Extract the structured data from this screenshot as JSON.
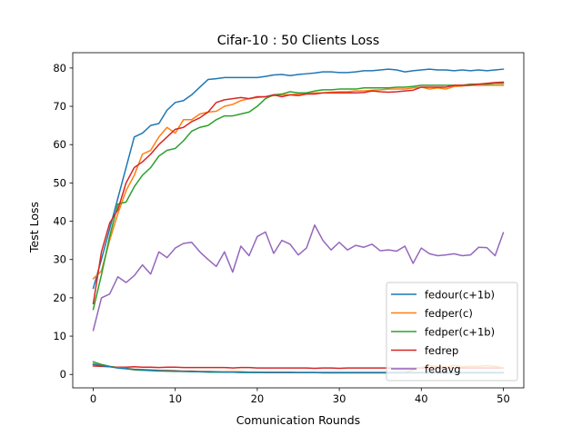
{
  "chart_data": {
    "type": "line",
    "title": "Cifar-10 : 50 Clients Loss",
    "xlabel": "Comunication Rounds",
    "ylabel": "Test Loss",
    "xlim": [
      -2.5,
      52.5
    ],
    "ylim": [
      -3.5,
      84
    ],
    "xticks": [
      0,
      10,
      20,
      30,
      40,
      50
    ],
    "yticks": [
      0,
      10,
      20,
      30,
      40,
      50,
      60,
      70,
      80
    ],
    "grid": false,
    "legend_position": "lower-right",
    "x": [
      0,
      1,
      2,
      3,
      4,
      5,
      6,
      7,
      8,
      9,
      10,
      11,
      12,
      13,
      14,
      15,
      16,
      17,
      18,
      19,
      20,
      21,
      22,
      23,
      24,
      25,
      26,
      27,
      28,
      29,
      30,
      31,
      32,
      33,
      34,
      35,
      36,
      37,
      38,
      39,
      40,
      41,
      42,
      43,
      44,
      45,
      46,
      47,
      48,
      49,
      50
    ],
    "series": [
      {
        "name": "fedour(c+1b)",
        "color": "#1f77b4",
        "values": [
          22.5,
          30,
          38,
          46,
          54,
          62,
          63,
          65,
          65.5,
          69,
          71,
          71.5,
          73,
          75,
          77,
          77.2,
          77.5,
          77.5,
          77.5,
          77.5,
          77.5,
          77.8,
          78.2,
          78.3,
          78,
          78.3,
          78.5,
          78.7,
          79,
          79,
          78.8,
          78.8,
          79,
          79.3,
          79.3,
          79.5,
          79.7,
          79.5,
          79,
          79.3,
          79.5,
          79.7,
          79.5,
          79.5,
          79.3,
          79.5,
          79.3,
          79.5,
          79.3,
          79.5,
          79.7
        ]
      },
      {
        "name": "fedper(c)",
        "color": "#ff7f0e",
        "values": [
          25,
          27,
          35,
          42,
          48,
          52,
          57.5,
          58.5,
          62,
          64.5,
          63,
          66.5,
          66.5,
          68,
          68.5,
          68.7,
          70,
          70.5,
          71.5,
          72,
          72.3,
          72.5,
          72.8,
          73,
          73,
          73.2,
          73.3,
          73.5,
          73.5,
          73.7,
          73.8,
          73.8,
          74,
          74,
          74.2,
          74.3,
          74.5,
          74.5,
          74.5,
          74.8,
          75,
          74.5,
          74.8,
          74.5,
          75.2,
          75.3,
          75.5,
          75.5,
          75.5,
          75.5,
          75.5
        ]
      },
      {
        "name": "fedper(c+1b)",
        "color": "#2ca02c",
        "values": [
          17,
          26,
          36,
          44.5,
          45,
          49,
          52,
          54,
          57,
          58.5,
          59,
          61,
          63.5,
          64.5,
          65,
          66.5,
          67.5,
          67.5,
          68,
          68.5,
          70,
          72,
          73,
          73.2,
          73.8,
          73.5,
          73.5,
          74,
          74.3,
          74.3,
          74.5,
          74.5,
          74.5,
          74.8,
          74.8,
          74.8,
          74.8,
          75,
          75,
          75.2,
          75.5,
          75.5,
          75.5,
          75.5,
          75.5,
          75.5,
          75.8,
          75.8,
          75.8,
          76,
          76
        ]
      },
      {
        "name": "fedrep",
        "color": "#d62728",
        "values": [
          18.5,
          32,
          39.5,
          43,
          50,
          54,
          55.5,
          57.5,
          60,
          62,
          64,
          64.5,
          66,
          67,
          68.5,
          71,
          71.7,
          72,
          72.3,
          72,
          72.5,
          72.5,
          73,
          72.5,
          73,
          72.8,
          73.2,
          73.2,
          73.5,
          73.5,
          73.5,
          73.5,
          73.5,
          73.6,
          74,
          73.8,
          73.7,
          73.8,
          74,
          74.2,
          75,
          75,
          75,
          75,
          75.5,
          75.5,
          75.5,
          75.8,
          76,
          76.2,
          76.3
        ]
      },
      {
        "name": "fedavg",
        "color": "#9467bd",
        "values": [
          11.5,
          20,
          21,
          25.5,
          24,
          25.8,
          28.6,
          26.2,
          32,
          30.5,
          33,
          34.2,
          34.5,
          32,
          30,
          28.2,
          32,
          26.7,
          33.5,
          31,
          36,
          37.2,
          31.6,
          35,
          34,
          31.2,
          33,
          39,
          35,
          32.5,
          34.5,
          32.5,
          33.7,
          33.2,
          34,
          32.3,
          32.5,
          32.2,
          33.5,
          29,
          33,
          31.5,
          31,
          31.2,
          31.5,
          31,
          31.2,
          33.2,
          33.1,
          31,
          37
        ]
      }
    ],
    "low_series": [
      {
        "color": "#d62728",
        "values": [
          2.2,
          2.1,
          2,
          1.9,
          1.9,
          2,
          1.9,
          1.9,
          1.8,
          1.9,
          1.9,
          1.8,
          1.8,
          1.8,
          1.8,
          1.8,
          1.8,
          1.7,
          1.8,
          1.8,
          1.7,
          1.7,
          1.7,
          1.7,
          1.7,
          1.7,
          1.7,
          1.6,
          1.7,
          1.7,
          1.6,
          1.7,
          1.7,
          1.7,
          1.7,
          1.7,
          1.7,
          1.7,
          1.7,
          1.7,
          1.7,
          1.7,
          1.7,
          1.7,
          1.7,
          1.7,
          1.7,
          1.7,
          1.7,
          1.7,
          1.7
        ]
      },
      {
        "color": "#ff7f0e",
        "values": [
          2.8,
          2.5,
          2.1,
          1.8,
          1.6,
          1.4,
          1.3,
          1.2,
          1.1,
          1.1,
          1,
          0.9,
          0.9,
          0.8,
          0.8,
          0.7,
          0.7,
          0.7,
          0.7,
          0.6,
          0.6,
          0.6,
          0.6,
          0.6,
          0.6,
          0.5,
          0.5,
          0.5,
          0.5,
          0.5,
          0.5,
          0.5,
          0.5,
          0.5,
          0.5,
          0.5,
          0.5,
          0.5,
          0.5,
          1.2,
          1.8,
          2.3,
          2.1,
          1.9,
          2.4,
          2,
          2.1,
          2.1,
          2.3,
          2.1,
          1.7
        ]
      },
      {
        "color": "#2ca02c",
        "values": [
          3.3,
          2.6,
          2.1,
          1.7,
          1.5,
          1.2,
          1.1,
          1,
          0.9,
          0.9,
          0.8,
          0.8,
          0.7,
          0.7,
          0.6,
          0.6,
          0.6,
          0.6,
          0.5,
          0.5,
          0.5,
          0.5,
          0.5,
          0.5,
          0.5,
          0.5,
          0.5,
          0.5,
          0.4,
          0.4,
          0.4,
          0.4,
          0.4,
          0.4,
          0.4,
          0.4,
          0.4,
          0.4,
          0.4,
          0.4,
          0.4,
          0.4,
          0.4,
          0.4,
          0.4,
          0.4,
          0.4,
          0.4,
          0.4,
          0.4,
          0.4
        ]
      },
      {
        "color": "#1f77b4",
        "values": [
          2.6,
          2.3,
          2,
          1.7,
          1.5,
          1.3,
          1.2,
          1.1,
          1,
          0.9,
          0.9,
          0.8,
          0.8,
          0.7,
          0.7,
          0.7,
          0.6,
          0.6,
          0.6,
          0.6,
          0.6,
          0.5,
          0.5,
          0.5,
          0.5,
          0.5,
          0.5,
          0.5,
          0.5,
          0.5,
          0.5,
          0.5,
          0.5,
          0.5,
          0.5,
          0.5,
          0.5,
          0.5,
          0.5,
          0.5,
          0.5,
          0.5,
          0.5,
          0.5,
          0.5,
          0.5,
          0.5,
          0.5,
          0.5,
          0.5,
          0.5
        ]
      }
    ]
  }
}
